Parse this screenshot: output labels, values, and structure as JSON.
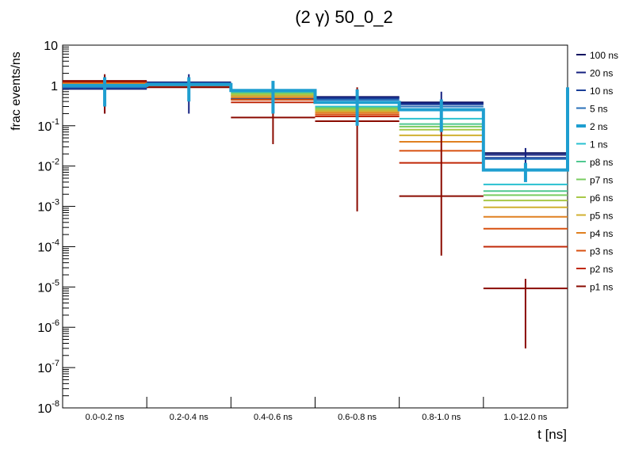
{
  "chart_data": {
    "type": "step-histogram",
    "title": "(2 γ) 50_0_2",
    "xlabel": "t [ns]",
    "ylabel": "frac events/ns",
    "yscale": "log",
    "ylim": [
      1e-08,
      10
    ],
    "y_ticks": [
      {
        "exp": "-8",
        "value": 1e-08
      },
      {
        "exp": "-7",
        "value": 1e-07
      },
      {
        "exp": "-6",
        "value": 1e-06
      },
      {
        "exp": "-5",
        "value": 1e-05
      },
      {
        "exp": "-4",
        "value": 0.0001
      },
      {
        "exp": "-3",
        "value": 0.001
      },
      {
        "exp": "-2",
        "value": 0.01
      },
      {
        "exp": "-1",
        "value": 0.1
      },
      {
        "plain": "1",
        "value": 1
      },
      {
        "plain": "10",
        "value": 10
      }
    ],
    "categories": [
      "0.0-0.2 ns",
      "0.2-0.4 ns",
      "0.4-0.6 ns",
      "0.6-0.8 ns",
      "0.8-1.0 ns",
      "1.0-12.0 ns"
    ],
    "legend_position": "right",
    "series": [
      {
        "name": "100 ns",
        "color": "#0a1060",
        "highlight": false,
        "values": [
          0.82,
          1.2,
          0.45,
          0.52,
          0.38,
          0.021
        ],
        "errors": null
      },
      {
        "name": "20 ns",
        "color": "#142080",
        "highlight": false,
        "values": [
          0.84,
          1.18,
          0.46,
          0.5,
          0.36,
          0.019
        ],
        "errors": [
          [
            0.2,
            1.8
          ],
          [
            0.2,
            1.9
          ],
          null,
          null,
          [
            0.07,
            0.7
          ],
          [
            0.006,
            0.028
          ]
        ]
      },
      {
        "name": "10 ns",
        "color": "#1a3e98",
        "highlight": false,
        "values": [
          0.86,
          1.16,
          0.48,
          0.48,
          0.34,
          0.016
        ],
        "errors": null
      },
      {
        "name": "5 ns",
        "color": "#2a70b8",
        "highlight": false,
        "values": [
          0.9,
          1.12,
          0.55,
          0.44,
          0.3,
          0.015
        ],
        "errors": null
      },
      {
        "name": "2 ns",
        "color": "#1e9ed0",
        "highlight": true,
        "values": [
          1.0,
          1.05,
          0.75,
          0.38,
          0.25,
          0.008
        ],
        "errors": [
          [
            0.3,
            1.6
          ],
          [
            0.4,
            1.6
          ],
          [
            0.2,
            1.3
          ],
          [
            0.1,
            0.8
          ],
          [
            0.07,
            0.45
          ],
          [
            0.004,
            0.012
          ]
        ]
      },
      {
        "name": "1 ns",
        "color": "#28c0d0",
        "highlight": false,
        "values": [
          1.02,
          1.0,
          0.7,
          0.3,
          0.15,
          0.0035
        ],
        "errors": null
      },
      {
        "name": "p8 ns",
        "color": "#50c890",
        "highlight": false,
        "values": [
          1.05,
          0.98,
          0.65,
          0.28,
          0.11,
          0.0024
        ],
        "errors": null
      },
      {
        "name": "p7 ns",
        "color": "#78cc60",
        "highlight": false,
        "values": [
          1.08,
          0.96,
          0.62,
          0.27,
          0.095,
          0.0019
        ],
        "errors": null
      },
      {
        "name": "p6 ns",
        "color": "#a8c848",
        "highlight": false,
        "values": [
          1.1,
          0.95,
          0.6,
          0.25,
          0.08,
          0.0014
        ],
        "errors": null
      },
      {
        "name": "p5 ns",
        "color": "#d0b030",
        "highlight": false,
        "values": [
          1.12,
          0.94,
          0.55,
          0.23,
          0.058,
          0.00095
        ],
        "errors": null
      },
      {
        "name": "p4 ns",
        "color": "#e08020",
        "highlight": false,
        "values": [
          1.15,
          0.93,
          0.5,
          0.21,
          0.04,
          0.00055
        ],
        "errors": null
      },
      {
        "name": "p3 ns",
        "color": "#d85010",
        "highlight": false,
        "values": [
          1.2,
          0.92,
          0.44,
          0.19,
          0.024,
          0.00028
        ],
        "errors": null
      },
      {
        "name": "p2 ns",
        "color": "#c02808",
        "highlight": false,
        "values": [
          1.25,
          0.91,
          0.38,
          0.17,
          0.012,
          0.0001
        ],
        "errors": null
      },
      {
        "name": "p1 ns",
        "color": "#8a0a00",
        "highlight": false,
        "values": [
          1.3,
          0.9,
          0.16,
          0.13,
          0.0018,
          9.2e-06
        ],
        "errors": [
          [
            0.2,
            1.9
          ],
          null,
          [
            0.035,
            0.6
          ],
          [
            0.00075,
            0.9
          ],
          [
            6e-05,
            0.25
          ],
          [
            3e-07,
            1.6e-05
          ]
        ]
      }
    ]
  }
}
